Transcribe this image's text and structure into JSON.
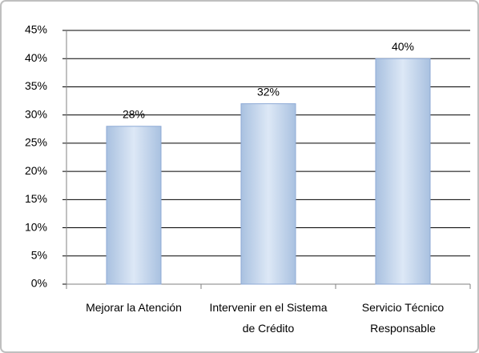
{
  "chart_data": {
    "type": "bar",
    "categories": [
      "Mejorar la Atención",
      "Intervenir en el Sistema de Crédito",
      "Servicio Técnico Responsable"
    ],
    "values": [
      28,
      32,
      40
    ],
    "value_labels": [
      "28%",
      "32%",
      "40%"
    ],
    "color": "#b9cde5",
    "ylim": [
      0,
      45
    ],
    "yticks": [
      {
        "value": 0,
        "label": "0%"
      },
      {
        "value": 5,
        "label": "5%"
      },
      {
        "value": 10,
        "label": "10%"
      },
      {
        "value": 15,
        "label": "15%"
      },
      {
        "value": 20,
        "label": "20%"
      },
      {
        "value": 25,
        "label": "25%"
      },
      {
        "value": 30,
        "label": "30%"
      },
      {
        "value": 35,
        "label": "35%"
      },
      {
        "value": 40,
        "label": "40%"
      },
      {
        "value": 45,
        "label": "45%"
      }
    ],
    "grid": true
  }
}
